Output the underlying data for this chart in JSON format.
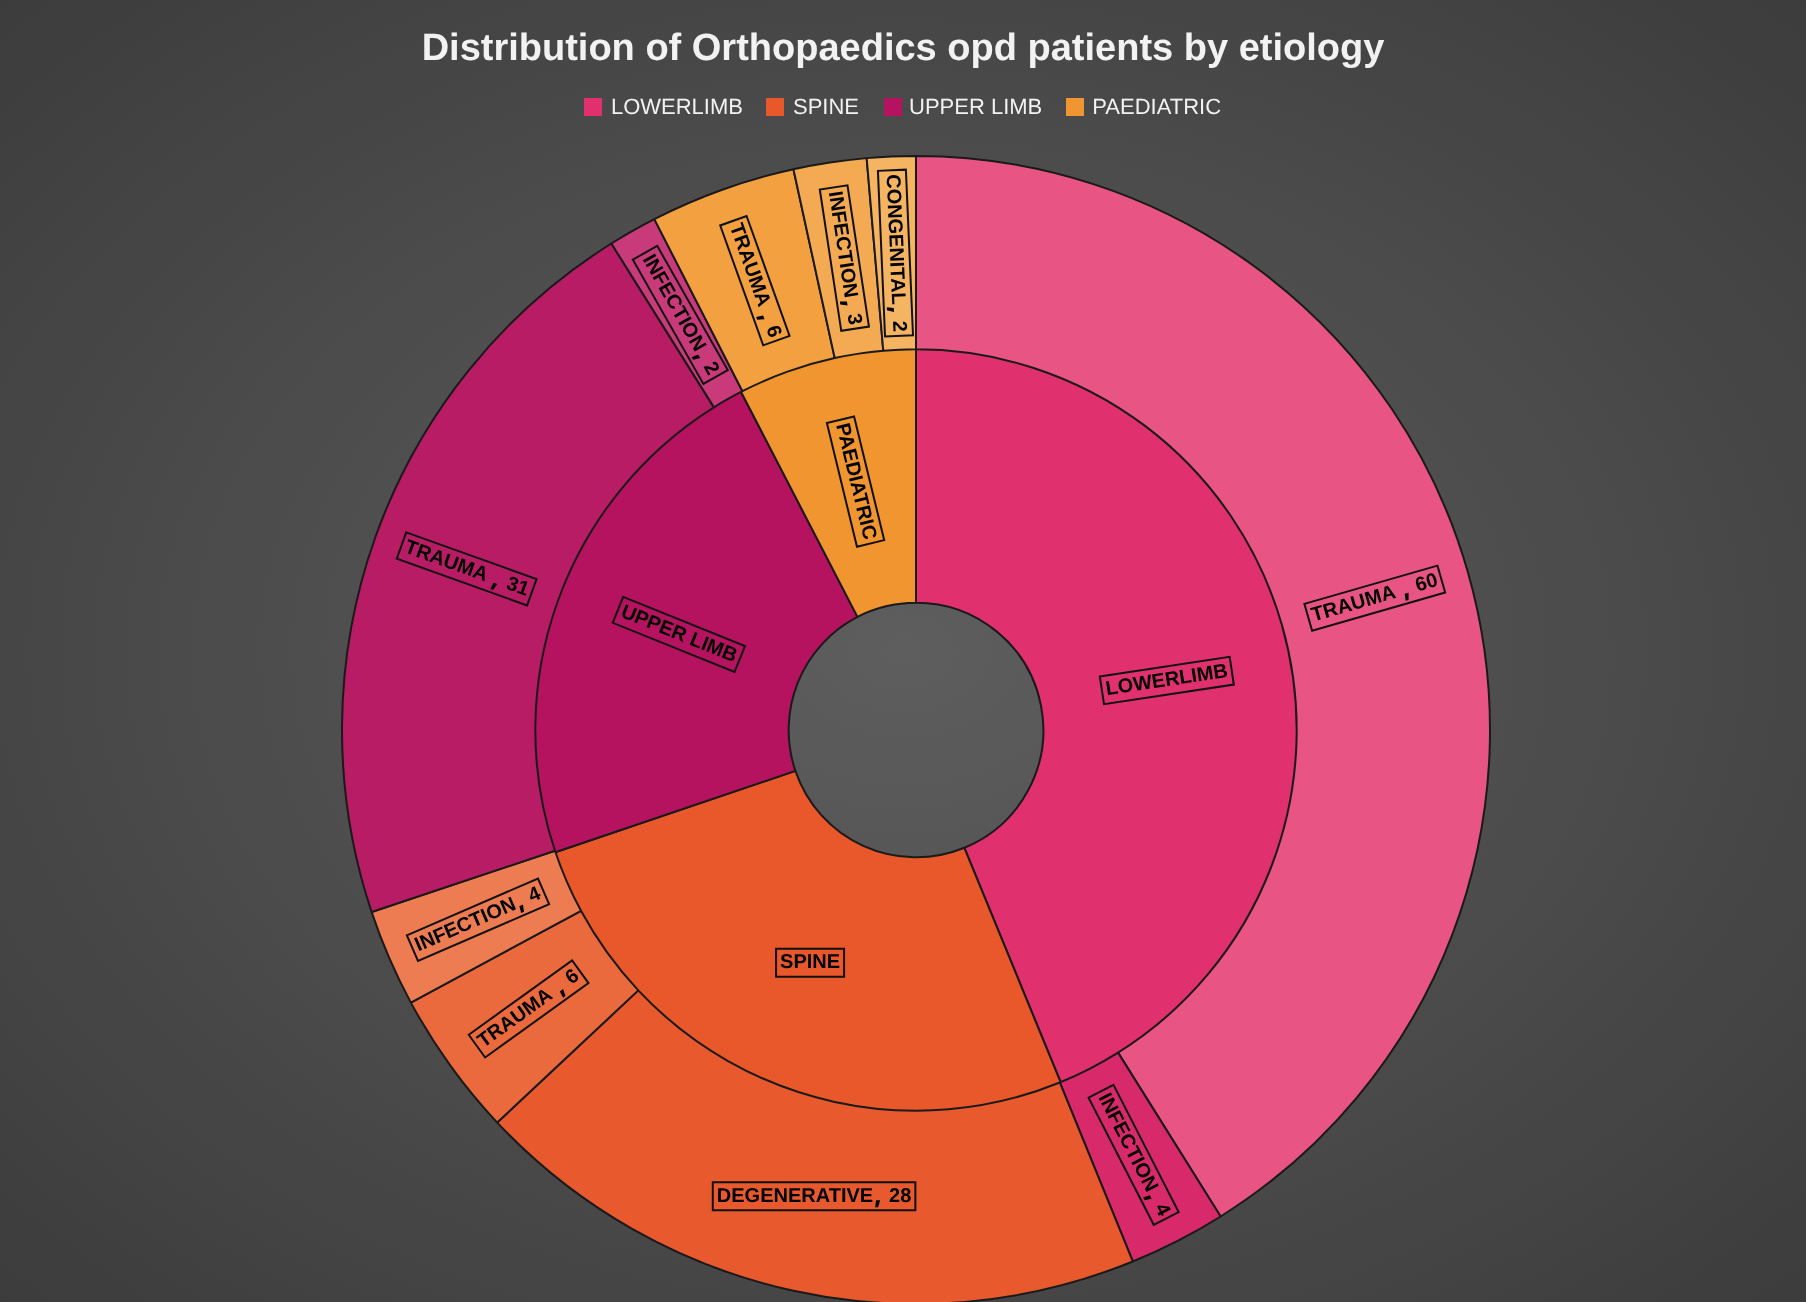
{
  "chart_data": [
    {
      "type": "donut",
      "title": "Distribution of Orthopaedics opd patients by etiology",
      "legend": "top",
      "categories": [
        "LOWERLIMB",
        "SPINE",
        "UPPER LIMB",
        "PAEDIATRIC"
      ],
      "values": [
        43.8,
        26.0,
        22.6,
        7.6
      ],
      "colors": [
        "#e0306e",
        "#e8582a",
        "#b5135f",
        "#f0952f"
      ]
    },
    {
      "type": "donut",
      "data_labels": true,
      "categories": [
        "TRAUMA ",
        "INFECTION",
        "DEGENERATIVE",
        "TRAUMA ",
        "INFECTION",
        "TRAUMA ",
        "INFECTION",
        "TRAUMA ",
        "INFECTION",
        "CONGENITAL"
      ],
      "values": [
        60,
        4,
        28,
        6,
        4,
        31,
        2,
        6,
        3,
        2
      ],
      "colors": [
        "#e85585",
        "#d82a6a",
        "#e85a2e",
        "#ea6a3e",
        "#ee7c52",
        "#b81c65",
        "#c83a7a",
        "#f2a040",
        "#f3aa52",
        "#f4b462"
      ]
    }
  ]
}
